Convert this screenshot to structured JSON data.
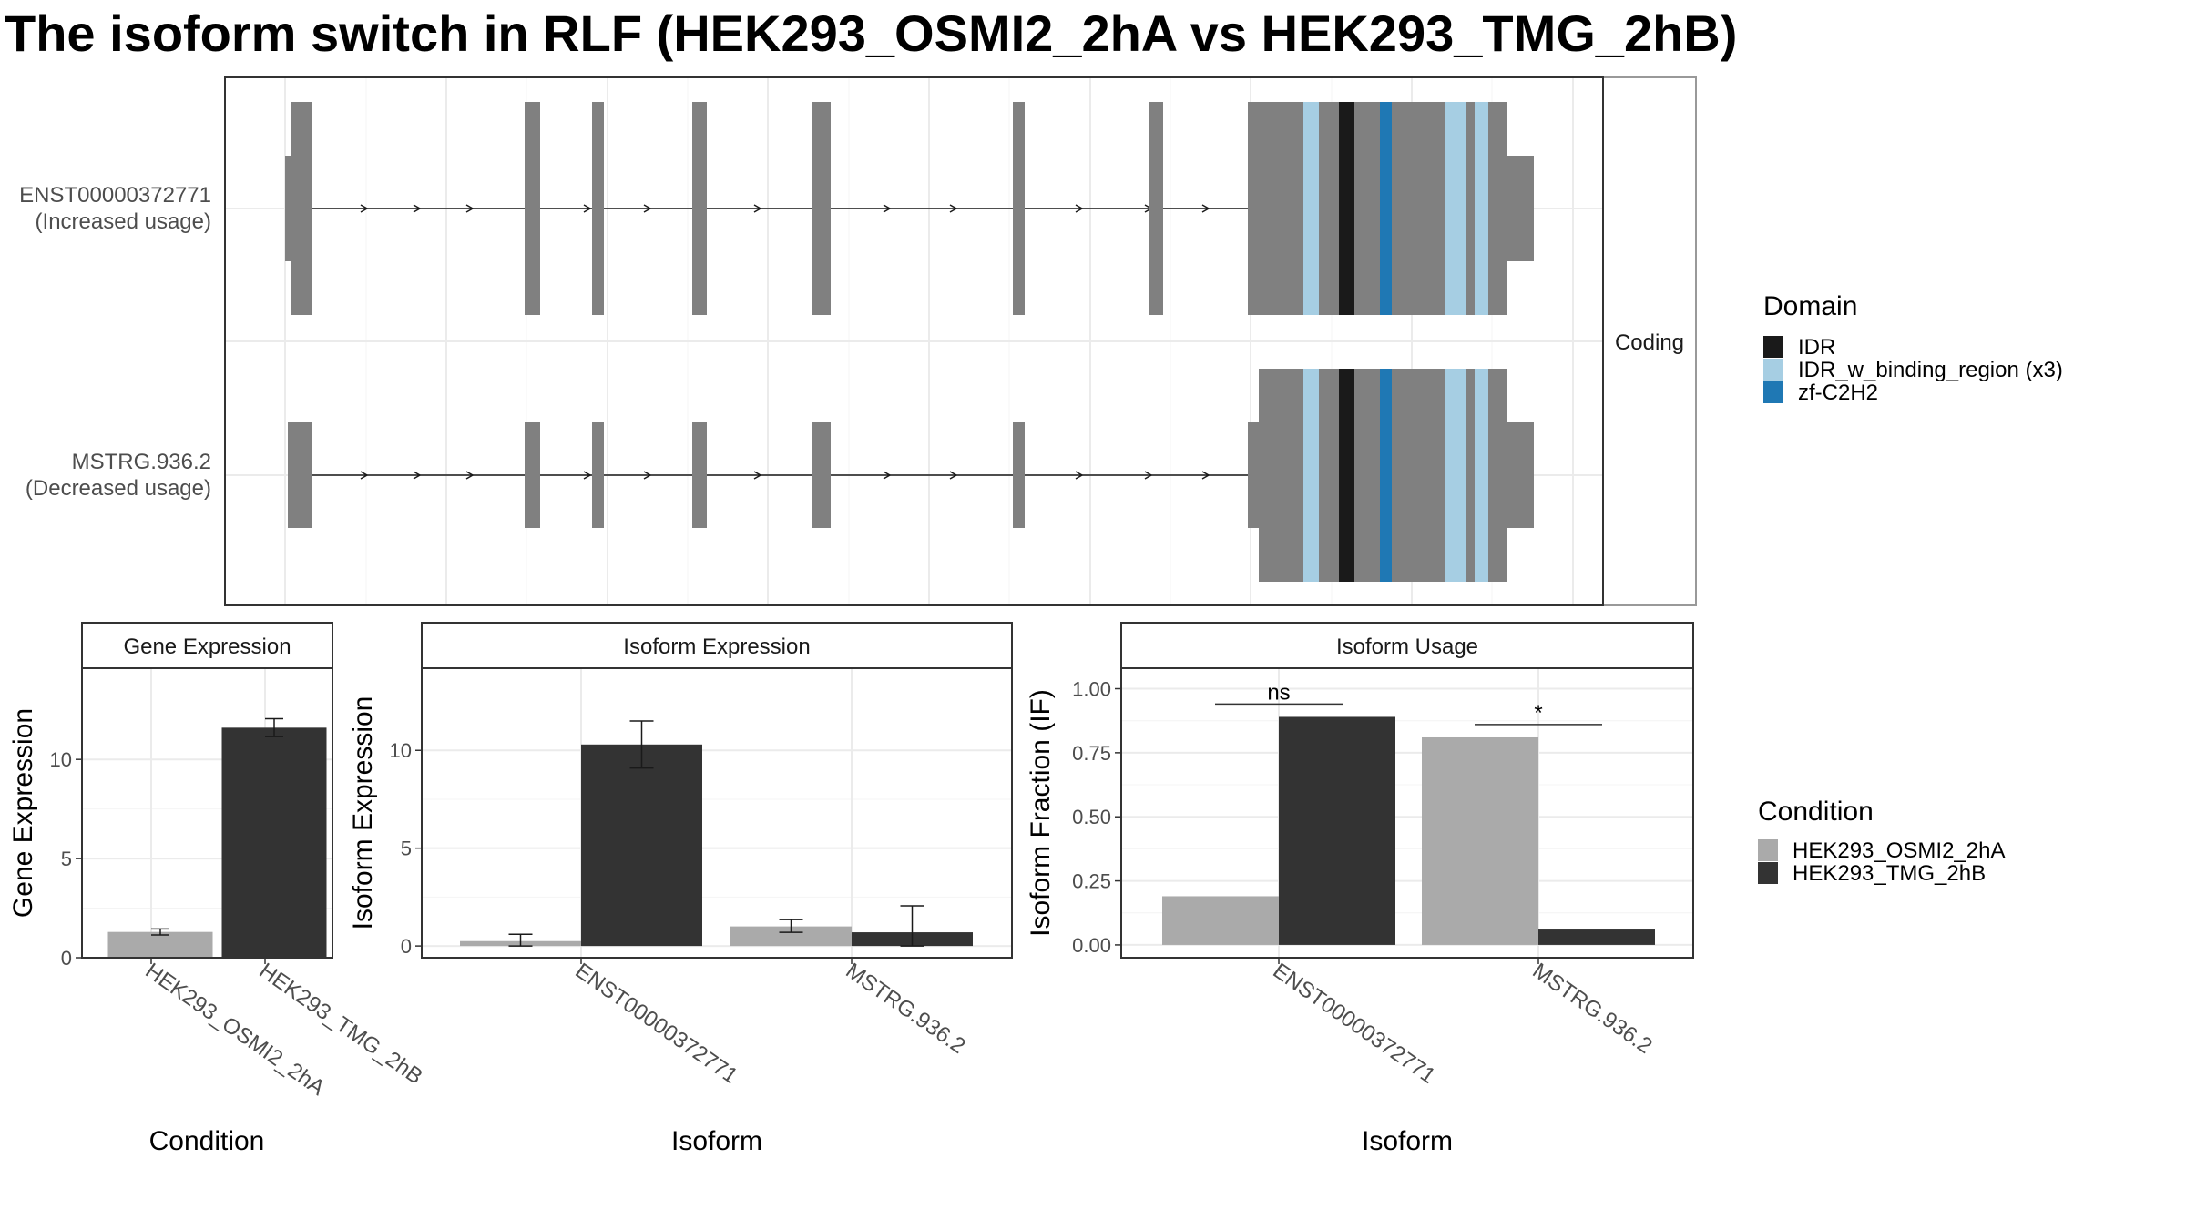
{
  "title": "The isoform switch in RLF (HEK293_OSMI2_2hA vs HEK293_TMG_2hB)",
  "colors": {
    "exon": "#808080",
    "idr": "#1a1a1a",
    "idr_binding": "#a6cee3",
    "zf": "#1f78b4",
    "cond_a": "#aaaaaa",
    "cond_b": "#333333",
    "panel_border": "#333333",
    "strip_border": "#999999",
    "grid": "#ebebeb"
  },
  "structure": {
    "facet_label": "Coding",
    "transcripts": [
      {
        "id": "ENST00000372771",
        "usage": "(Increased usage)"
      },
      {
        "id": "MSTRG.936.2",
        "usage": "(Decreased usage)"
      }
    ]
  },
  "domain_legend": {
    "title": "Domain",
    "items": [
      {
        "label": "IDR",
        "color": "#1a1a1a"
      },
      {
        "label": "IDR_w_binding_region (x3)",
        "color": "#a6cee3"
      },
      {
        "label": "zf-C2H2",
        "color": "#1f78b4"
      }
    ]
  },
  "condition_legend": {
    "title": "Condition",
    "items": [
      {
        "label": "HEK293_OSMI2_2hA",
        "color": "#aaaaaa"
      },
      {
        "label": "HEK293_TMG_2hB",
        "color": "#333333"
      }
    ]
  },
  "chart_data": [
    {
      "type": "bar",
      "strip": "Gene Expression",
      "xlabel": "Condition",
      "ylabel": "Gene Expression",
      "categories": [
        "HEK293_OSMI2_2hA",
        "HEK293_TMG_2hB"
      ],
      "values": [
        1.3,
        11.6
      ],
      "errors": [
        [
          1.15,
          1.45
        ],
        [
          11.15,
          12.05
        ]
      ],
      "ylim": [
        0,
        14.6
      ],
      "yticks": [
        0,
        5,
        10
      ]
    },
    {
      "type": "bar",
      "strip": "Isoform Expression",
      "xlabel": "Isoform",
      "ylabel": "Isoform Expression",
      "categories": [
        "ENST00000372771",
        "MSTRG.936.2"
      ],
      "series": [
        {
          "name": "HEK293_OSMI2_2hA",
          "values": [
            0.25,
            1.0
          ],
          "errors": [
            [
              0.0,
              0.6
            ],
            [
              0.7,
              1.35
            ]
          ]
        },
        {
          "name": "HEK293_TMG_2hB",
          "values": [
            10.3,
            0.7
          ],
          "errors": [
            [
              9.1,
              11.5
            ],
            [
              0.0,
              2.05
            ]
          ]
        }
      ],
      "ylim": [
        -0.6,
        14.2
      ],
      "yticks": [
        0,
        5,
        10
      ]
    },
    {
      "type": "bar",
      "strip": "Isoform Usage",
      "xlabel": "Isoform",
      "ylabel": "Isoform Fraction (IF)",
      "categories": [
        "ENST00000372771",
        "MSTRG.936.2"
      ],
      "series": [
        {
          "name": "HEK293_OSMI2_2hA",
          "values": [
            0.19,
            0.81
          ]
        },
        {
          "name": "HEK293_TMG_2hB",
          "values": [
            0.89,
            0.06
          ]
        }
      ],
      "significance": [
        "ns",
        "*"
      ],
      "ylim": [
        -0.05,
        1.08
      ],
      "yticks": [
        0.0,
        0.25,
        0.5,
        0.75,
        1.0
      ],
      "ytick_labels": [
        "0.00",
        "0.25",
        "0.50",
        "0.75",
        "1.00"
      ]
    }
  ]
}
